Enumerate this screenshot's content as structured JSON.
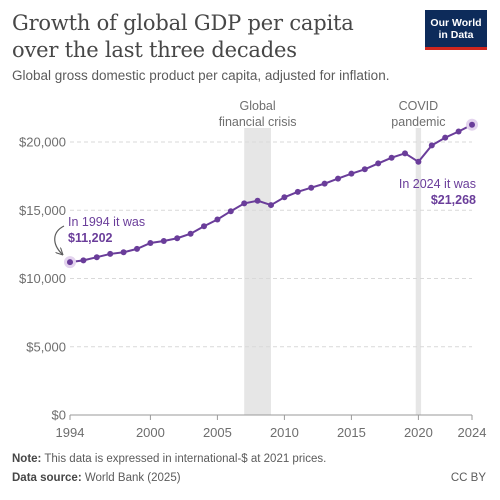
{
  "header": {
    "title_line1": "Growth of global GDP per capita",
    "title_line2": "over the last three decades",
    "subtitle": "Global gross domestic product per capita, adjusted for inflation.",
    "logo_line1": "Our World",
    "logo_line2": "in Data"
  },
  "chart_data": {
    "type": "line",
    "title": "Growth of global GDP per capita over the last three decades",
    "subtitle": "Global gross domestic product per capita, adjusted for inflation.",
    "x": [
      1994,
      1995,
      1996,
      1997,
      1998,
      1999,
      2000,
      2001,
      2002,
      2003,
      2004,
      2005,
      2006,
      2007,
      2008,
      2009,
      2010,
      2011,
      2012,
      2013,
      2014,
      2015,
      2016,
      2017,
      2018,
      2019,
      2020,
      2021,
      2022,
      2023,
      2024
    ],
    "series": [
      {
        "values": [
          11202,
          11330,
          11560,
          11800,
          11920,
          12170,
          12600,
          12750,
          12950,
          13280,
          13830,
          14320,
          14930,
          15500,
          15700,
          15380,
          15950,
          16350,
          16650,
          16950,
          17320,
          17680,
          18000,
          18430,
          18850,
          19170,
          18550,
          19750,
          20320,
          20770,
          21268
        ],
        "color": "#6a3d9a"
      }
    ],
    "xlim": [
      1994,
      2024
    ],
    "ylim": [
      0,
      20000
    ],
    "x_ticks": [
      1994,
      2000,
      2005,
      2010,
      2015,
      2020,
      2024
    ],
    "y_ticks": [
      0,
      5000,
      10000,
      15000,
      20000
    ],
    "y_tick_labels": [
      "$0",
      "$5,000",
      "$10,000",
      "$15,000",
      "$20,000"
    ],
    "grid": "horizontal-dashed",
    "shaded_periods": [
      {
        "start": 2007,
        "end": 2009,
        "label_line1": "Global",
        "label_line2": "financial crisis"
      },
      {
        "start": 2019.8,
        "end": 2020.2,
        "label_line1": "COVID",
        "label_line2": "pandemic"
      }
    ],
    "annotations": [
      {
        "x": 1994,
        "y": 11202,
        "line1": "In 1994 it was",
        "line2": "$11,202"
      },
      {
        "x": 2024,
        "y": 21268,
        "line1": "In 2024 it was",
        "line2": "$21,268"
      }
    ]
  },
  "footer": {
    "note_label": "Note:",
    "note_text": "This data is expressed in international-$ at 2021 prices.",
    "source_label": "Data source:",
    "source_text": "World Bank (2025)",
    "license": "CC BY"
  }
}
